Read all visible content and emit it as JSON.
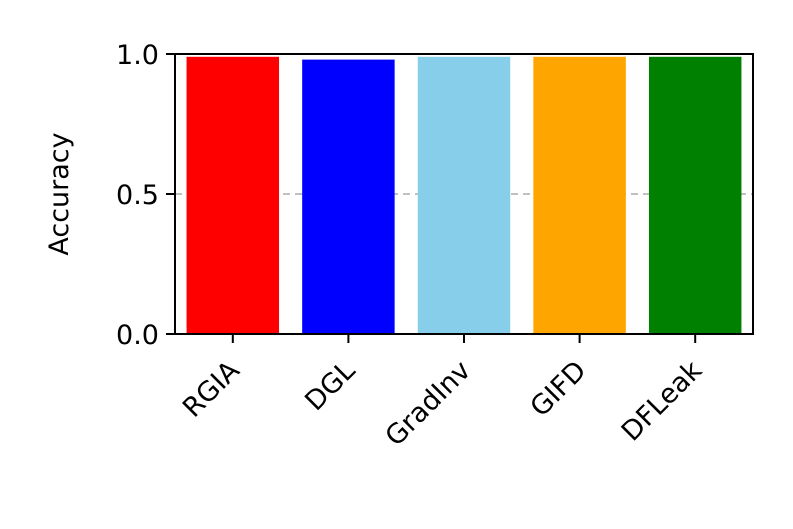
{
  "chart_data": {
    "type": "bar",
    "categories": [
      "RGIA",
      "DGL",
      "GradInv",
      "GIFD",
      "DFLeak"
    ],
    "values": [
      0.99,
      0.98,
      0.99,
      0.99,
      0.99
    ],
    "colors": [
      "#ff0000",
      "#0000ff",
      "#87ceeb",
      "#ffa500",
      "#008000"
    ],
    "title": "",
    "xlabel": "",
    "ylabel": "Accuracy",
    "ylim": [
      0,
      1.0
    ],
    "yticks": [
      "0.0",
      "0.5",
      "1.0"
    ],
    "reference_line": {
      "value": 0.5,
      "style": "dashed",
      "color": "#c0c0c0"
    },
    "grid": false,
    "legend": "none"
  }
}
